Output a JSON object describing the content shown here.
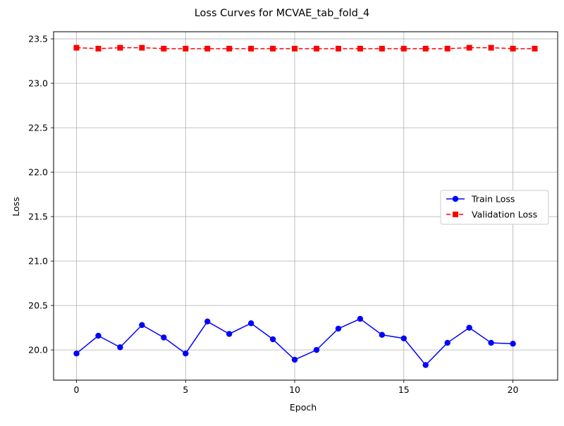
{
  "chart_data": {
    "type": "line",
    "title": "Loss Curves for MCVAE_tab_fold_4",
    "xlabel": "Epoch",
    "ylabel": "Loss",
    "xlim": [
      -1.05,
      22.05
    ],
    "ylim": [
      19.66,
      23.58
    ],
    "x_ticks": [
      0,
      5,
      10,
      15,
      20
    ],
    "y_ticks": [
      20.0,
      20.5,
      21.0,
      21.5,
      22.0,
      22.5,
      23.0,
      23.5
    ],
    "grid": true,
    "legend_position": "center-right",
    "series": [
      {
        "name": "Train Loss",
        "color": "#0000ff",
        "line_style": "solid",
        "marker": "circle",
        "x": [
          0,
          1,
          2,
          3,
          4,
          5,
          6,
          7,
          8,
          9,
          10,
          11,
          12,
          13,
          14,
          15,
          16,
          17,
          18,
          19,
          20
        ],
        "values": [
          19.96,
          20.16,
          20.03,
          20.28,
          20.14,
          19.96,
          20.32,
          20.18,
          20.3,
          20.12,
          19.89,
          20.0,
          20.24,
          20.35,
          20.17,
          20.13,
          19.83,
          20.08,
          20.25,
          20.08,
          20.07
        ]
      },
      {
        "name": "Validation Loss",
        "color": "#ff0000",
        "line_style": "dashed",
        "marker": "square",
        "x": [
          0,
          1,
          2,
          3,
          4,
          5,
          6,
          7,
          8,
          9,
          10,
          11,
          12,
          13,
          14,
          15,
          16,
          17,
          18,
          19,
          20,
          21
        ],
        "values": [
          23.4,
          23.39,
          23.4,
          23.4,
          23.39,
          23.39,
          23.39,
          23.39,
          23.39,
          23.39,
          23.39,
          23.39,
          23.39,
          23.39,
          23.39,
          23.39,
          23.39,
          23.39,
          23.4,
          23.4,
          23.39,
          23.39
        ]
      }
    ]
  }
}
